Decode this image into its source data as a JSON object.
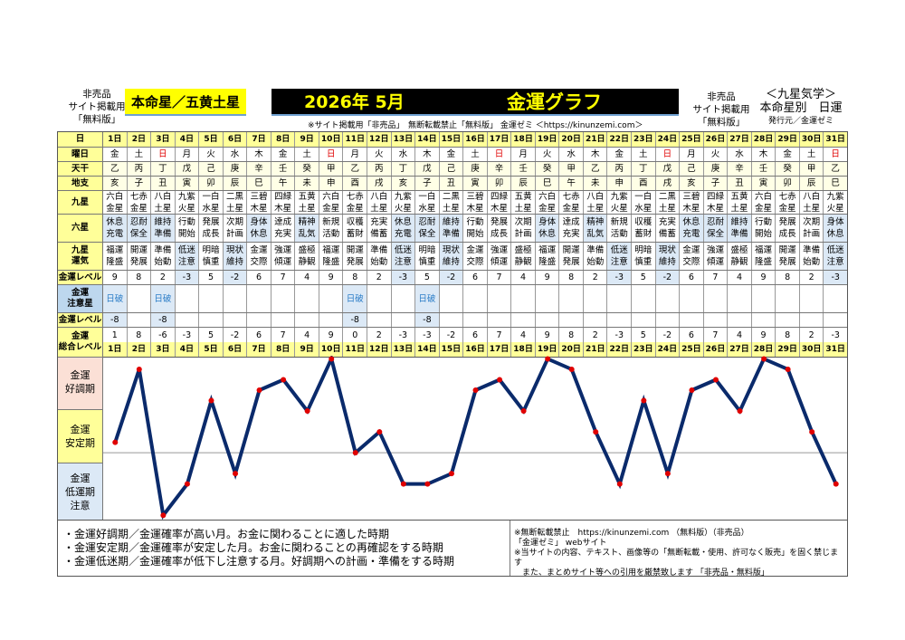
{
  "header": {
    "left_note": [
      "非売品",
      "サイト掲載用",
      "「無料版」"
    ],
    "honmei": "本命星／五黄土星",
    "year_month": "2026年 5月",
    "graph_title": "金運グラフ",
    "subline": "※サイト掲載用「非売品」　無断転載禁止「無料版」 金運ゼミ ＜https://kinunzemi.com＞",
    "right_note": [
      "非売品",
      "サイト掲載用",
      "「無料版」"
    ],
    "right_title": [
      "＜九星気学＞",
      "本命星別　日運"
    ],
    "publisher": "発行元／金運ゼミ"
  },
  "labels": {
    "day": "日",
    "weekday": "曜日",
    "tenkan": "天干",
    "chishi": "地支",
    "kyusei": "九星",
    "rokusei": "六星",
    "unki": "九星\n運気",
    "level": "金運レベル",
    "caution_star": "金運\n注意星",
    "caution_level": "金運レベル",
    "total": "金運\n総合レベル"
  },
  "days": [
    "1日",
    "2日",
    "3日",
    "4日",
    "5日",
    "6日",
    "7日",
    "8日",
    "9日",
    "10日",
    "11日",
    "12日",
    "13日",
    "14日",
    "15日",
    "16日",
    "17日",
    "18日",
    "19日",
    "20日",
    "21日",
    "22日",
    "23日",
    "24日",
    "25日",
    "26日",
    "27日",
    "28日",
    "29日",
    "30日",
    "31日"
  ],
  "weekday": [
    "金",
    "土",
    "日",
    "月",
    "火",
    "水",
    "木",
    "金",
    "土",
    "日",
    "月",
    "火",
    "水",
    "木",
    "金",
    "土",
    "日",
    "月",
    "火",
    "水",
    "木",
    "金",
    "土",
    "日",
    "月",
    "火",
    "水",
    "木",
    "金",
    "土",
    "日"
  ],
  "tenkan": [
    "乙",
    "丙",
    "丁",
    "戊",
    "己",
    "庚",
    "辛",
    "壬",
    "癸",
    "甲",
    "乙",
    "丙",
    "丁",
    "戊",
    "己",
    "庚",
    "辛",
    "壬",
    "癸",
    "甲",
    "乙",
    "丙",
    "丁",
    "戊",
    "己",
    "庚",
    "辛",
    "壬",
    "癸",
    "甲",
    "乙"
  ],
  "chishi": [
    "亥",
    "子",
    "丑",
    "寅",
    "卯",
    "辰",
    "巳",
    "午",
    "未",
    "申",
    "酉",
    "戌",
    "亥",
    "子",
    "丑",
    "寅",
    "卯",
    "辰",
    "巳",
    "午",
    "未",
    "申",
    "酉",
    "戌",
    "亥",
    "子",
    "丑",
    "寅",
    "卯",
    "辰",
    "巳"
  ],
  "kyusei": [
    "六白\n金星",
    "七赤\n金星",
    "八白\n土星",
    "九紫\n火星",
    "一白\n水星",
    "二黒\n土星",
    "三碧\n木星",
    "四緑\n木星",
    "五黄\n土星",
    "六白\n金星",
    "七赤\n金星",
    "八白\n土星",
    "九紫\n火星",
    "一白\n水星",
    "二黒\n土星",
    "三碧\n木星",
    "四緑\n木星",
    "五黄\n土星",
    "六白\n金星",
    "七赤\n金星",
    "八白\n土星",
    "九紫\n火星",
    "一白\n水星",
    "二黒\n土星",
    "三碧\n木星",
    "四緑\n木星",
    "五黄\n土星",
    "六白\n金星",
    "七赤\n金星",
    "八白\n土星",
    "九紫\n火星"
  ],
  "rokusei": [
    "休息\n充電",
    "忍耐\n保全",
    "維持\n準備",
    "行動\n開始",
    "発展\n成長",
    "次期\n計画",
    "身体\n休息",
    "達成\n充実",
    "精神\n乱気",
    "新規\n活動",
    "収穫\n蓄財",
    "充実\n備蓄",
    "休息\n充電",
    "忍耐\n保全",
    "維持\n準備",
    "行動\n開始",
    "発展\n成長",
    "次期\n計画",
    "身体\n休息",
    "達成\n充実",
    "精神\n乱気",
    "新規\n活動",
    "収穫\n蓄財",
    "充実\n備蓄",
    "休息\n充電",
    "忍耐\n保全",
    "維持\n準備",
    "行動\n開始",
    "発展\n成長",
    "次期\n計画",
    "身体\n休息"
  ],
  "unki": [
    "福運\n隆盛",
    "開運\n発展",
    "準備\n始動",
    "低迷\n注意",
    "明暗\n慎重",
    "現状\n維持",
    "金運\n交際",
    "強運\n傾運",
    "盛極\n静観",
    "福運\n隆盛",
    "開運\n発展",
    "準備\n始動",
    "低迷\n注意",
    "明暗\n慎重",
    "現状\n維持",
    "金運\n交際",
    "強運\n傾運",
    "盛極\n静観",
    "福運\n隆盛",
    "開運\n発展",
    "準備\n始動",
    "低迷\n注意",
    "明暗\n慎重",
    "現状\n維持",
    "金運\n交際",
    "強運\n傾運",
    "盛極\n静観",
    "福運\n隆盛",
    "開運\n発展",
    "準備\n始動",
    "低迷\n注意"
  ],
  "level": [
    9,
    8,
    2,
    -3,
    5,
    -2,
    6,
    7,
    4,
    9,
    8,
    2,
    -3,
    5,
    -2,
    6,
    7,
    4,
    9,
    8,
    2,
    -3,
    5,
    -2,
    6,
    7,
    4,
    9,
    8,
    2,
    -3
  ],
  "caution_star": [
    "日破",
    "",
    "日破",
    "",
    "",
    "",
    "",
    "",
    "",
    "",
    "日破",
    "",
    "",
    "日破",
    "",
    "",
    "",
    "",
    "",
    "",
    "",
    "",
    "",
    "",
    "",
    "",
    "",
    "",
    "",
    "",
    ""
  ],
  "caution_level": [
    -8,
    null,
    -8,
    null,
    null,
    null,
    null,
    null,
    null,
    null,
    -8,
    null,
    null,
    -8,
    null,
    null,
    null,
    null,
    null,
    null,
    null,
    null,
    null,
    null,
    null,
    null,
    null,
    null,
    null,
    null,
    null
  ],
  "chart_data": {
    "type": "line",
    "x": [
      "1日",
      "2日",
      "3日",
      "4日",
      "5日",
      "6日",
      "7日",
      "8日",
      "9日",
      "10日",
      "11日",
      "12日",
      "13日",
      "14日",
      "15日",
      "16日",
      "17日",
      "18日",
      "19日",
      "20日",
      "21日",
      "22日",
      "23日",
      "24日",
      "25日",
      "26日",
      "27日",
      "28日",
      "29日",
      "30日",
      "31日"
    ],
    "values": [
      1,
      8,
      -6,
      -3,
      5,
      -2,
      6,
      7,
      4,
      9,
      0,
      2,
      -3,
      -3,
      -2,
      6,
      7,
      4,
      9,
      8,
      2,
      -3,
      5,
      -2,
      6,
      7,
      4,
      9,
      8,
      2,
      -3
    ],
    "ylim": [
      -6.5,
      9.3
    ],
    "bands": [
      "金運\n好調期",
      "金運\n安定期",
      "金運\n低運期\n注意"
    ],
    "line_color": "#0a2a6b",
    "point_color": "#e00000"
  },
  "footer": {
    "left": [
      "・金運好調期／金運確率が高い月。お金に関わることに適した時期",
      "・金運安定期／金運確率が安定した月。お金に関わることの再確認をする時期",
      "・金運低迷期／金運確率が低下し注意する月。好調期への計画・準備をする時期"
    ],
    "right": [
      "※無断転載禁止　https://kinunzemi.com （無料版）（非売品）",
      "「金運ゼミ」 webサイト",
      "※当サイトの内容、テキスト、画像等の「無断転載・使用、許可なく販売」を固く禁じます",
      "　また、まとめサイト等への引用を厳禁致します 「非売品・無料版」"
    ]
  }
}
